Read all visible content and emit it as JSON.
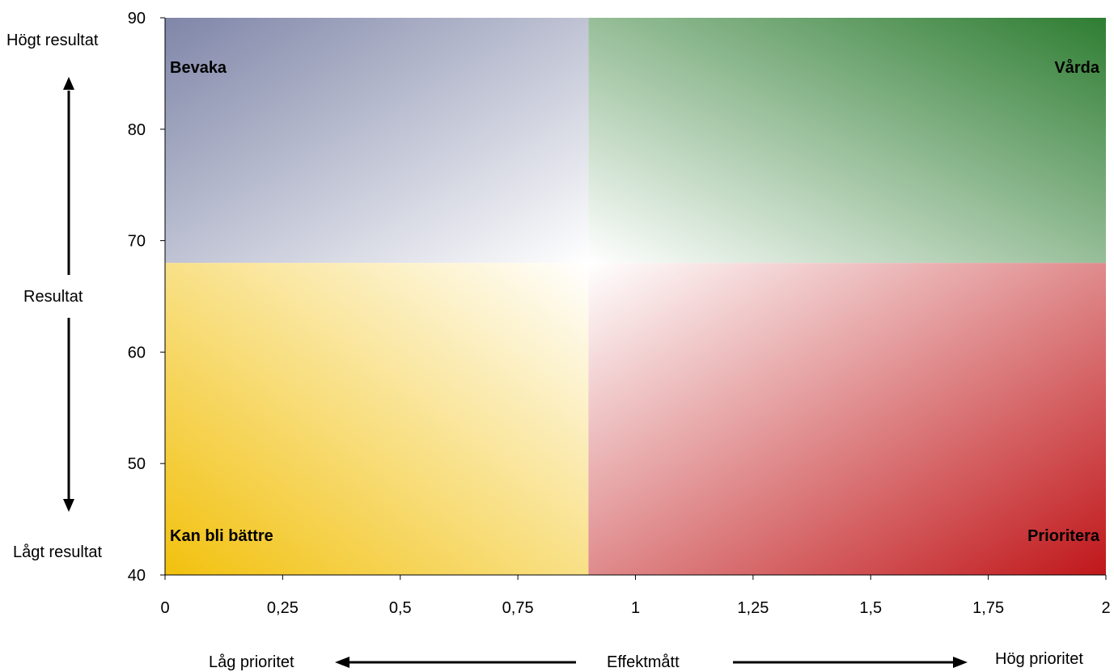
{
  "chart_data": {
    "type": "scatter",
    "title": "",
    "xlabel": "Effektmått",
    "ylabel": "Resultat",
    "xlim": [
      0,
      2
    ],
    "ylim": [
      40,
      90
    ],
    "x_ticks": [
      0,
      0.25,
      0.5,
      0.75,
      1,
      1.25,
      1.5,
      1.75,
      2
    ],
    "x_tick_labels": [
      "0",
      "0,25",
      "0,5",
      "0,75",
      "1",
      "1,25",
      "1,5",
      "1,75",
      "2"
    ],
    "y_ticks": [
      40,
      50,
      60,
      70,
      80,
      90
    ],
    "y_tick_labels": [
      "40",
      "50",
      "60",
      "70",
      "80",
      "90"
    ],
    "grid": false,
    "series": [],
    "quadrant_split": {
      "x": 0.9,
      "y": 68
    },
    "quadrants": [
      {
        "name": "Bevaka",
        "position": "top-left",
        "color": "#7f86a8"
      },
      {
        "name": "Vårda",
        "position": "top-right",
        "color": "#2e7d32"
      },
      {
        "name": "Kan bli bättre",
        "position": "bottom-left",
        "color": "#f2c10e"
      },
      {
        "name": "Prioritera",
        "position": "bottom-right",
        "color": "#c0171a"
      }
    ],
    "annotations": {
      "y_high": "Högt resultat",
      "y_low": "Lågt resultat",
      "x_low": "Låg prioritet",
      "x_high": "Hög prioritet"
    }
  },
  "colors": {
    "axis": "#000000",
    "label": "#000000"
  }
}
